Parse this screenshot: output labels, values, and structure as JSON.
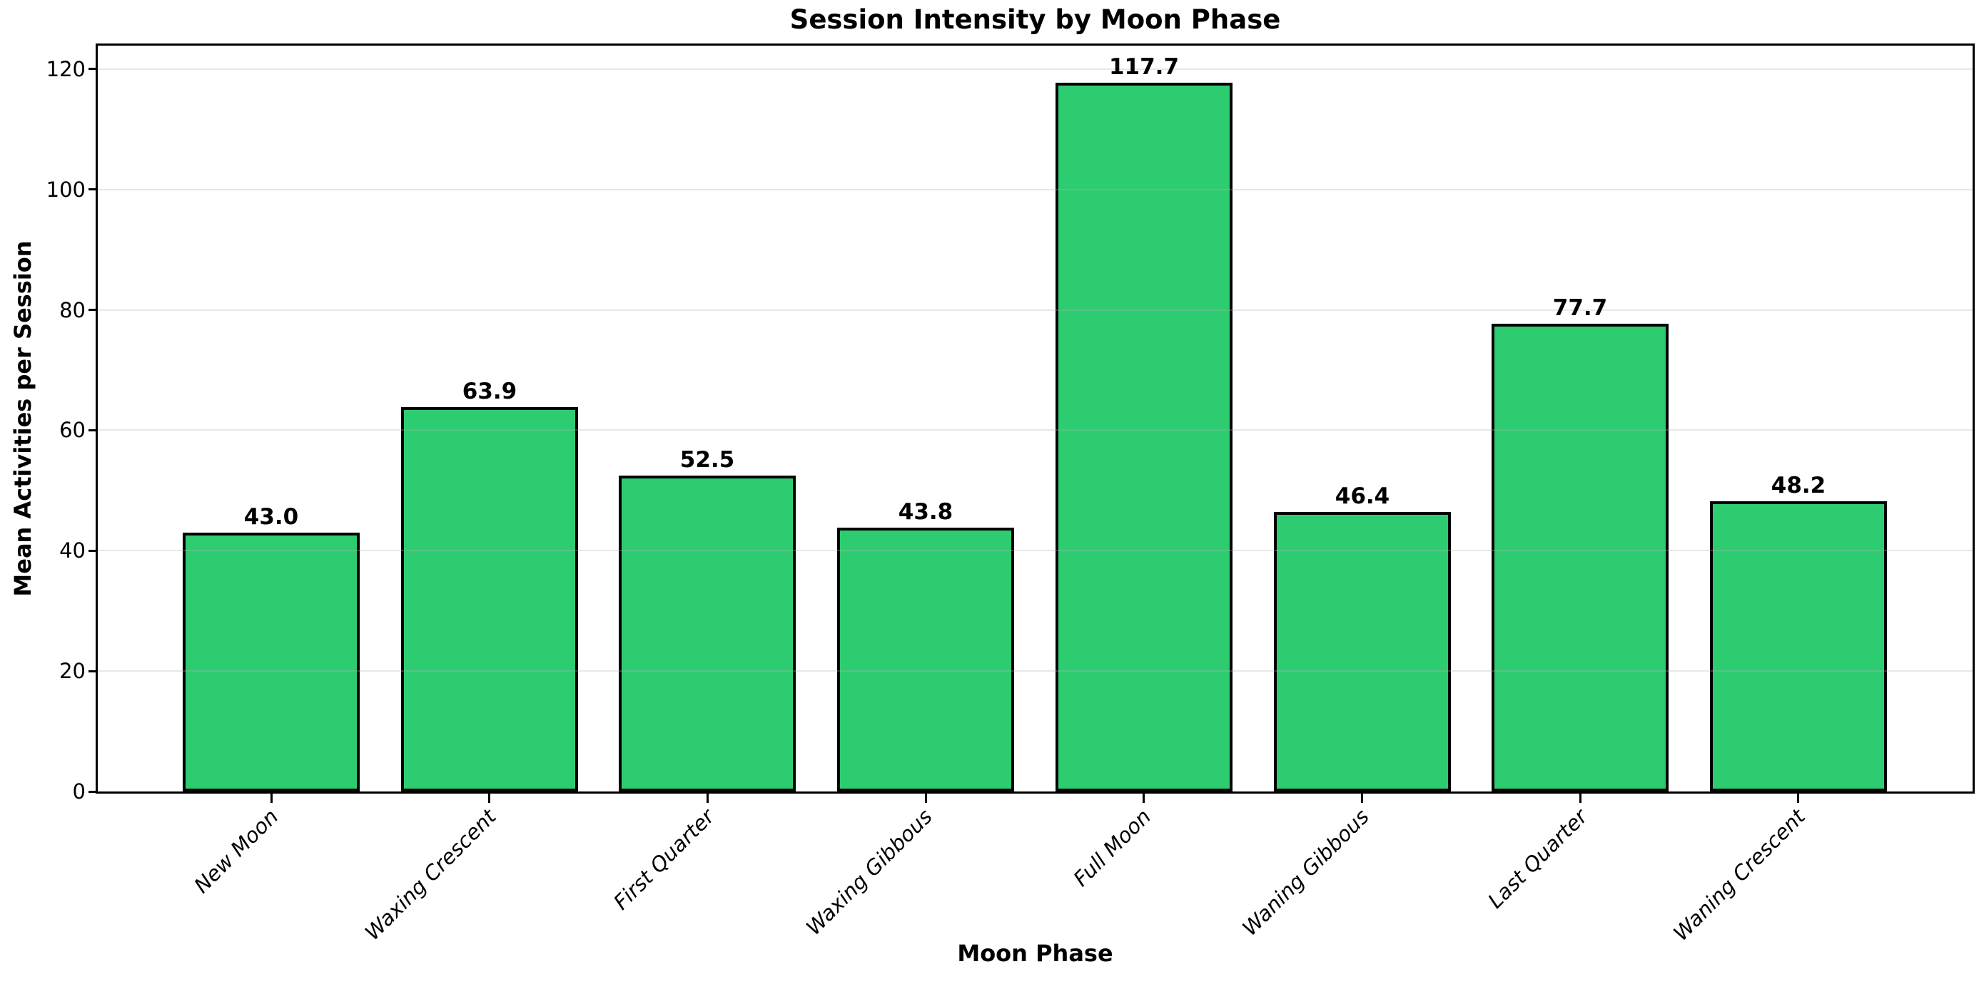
{
  "chart_data": {
    "type": "bar",
    "title": "Session Intensity by Moon Phase",
    "xlabel": "Moon Phase",
    "ylabel": "Mean Activities per Session",
    "categories": [
      "New Moon",
      "Waxing Crescent",
      "First Quarter",
      "Waxing Gibbous",
      "Full Moon",
      "Waning Gibbous",
      "Last Quarter",
      "Waning Crescent"
    ],
    "values": [
      43.0,
      63.9,
      52.5,
      43.8,
      117.7,
      46.4,
      77.7,
      48.2
    ],
    "bar_labels": [
      "43.0",
      "63.9",
      "52.5",
      "43.8",
      "117.7",
      "46.4",
      "77.7",
      "48.2"
    ],
    "yticks": [
      "0",
      "20",
      "40",
      "60",
      "80",
      "100",
      "120"
    ],
    "ytick_values": [
      0,
      20,
      40,
      60,
      80,
      100,
      120
    ],
    "ylim": [
      0,
      123.9
    ],
    "grid": "horizontal",
    "legend": "none",
    "bar_color": "#2ecc71",
    "bar_edge_color": "#000000",
    "grid_color_rgba": "rgba(176,176,176,0.3)",
    "axis_color": "#000000",
    "text_color": "#000000",
    "xtick_style": "italic, rotated 45deg"
  }
}
